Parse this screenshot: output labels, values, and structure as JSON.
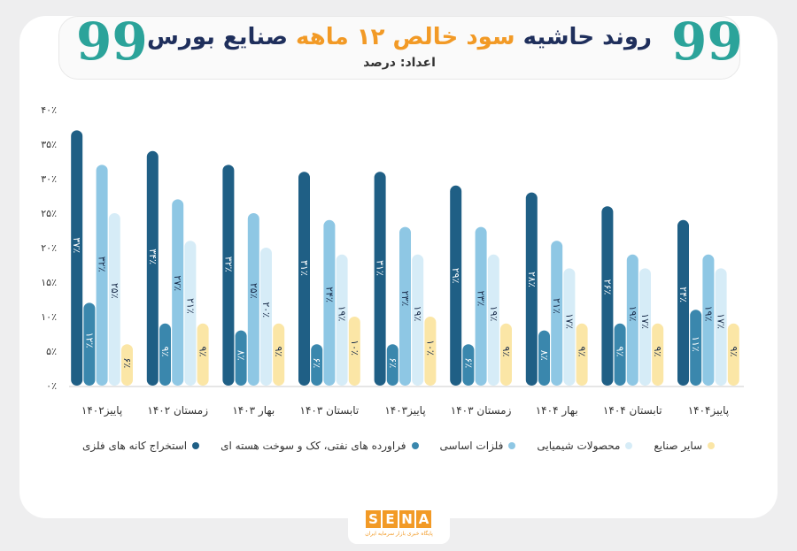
{
  "header": {
    "title_part1": "روند حاشیه",
    "title_accent": "سود خالص ۱۲ ماهه",
    "title_part2": "صنایع بورس",
    "subtitle": "اعداد: درصد",
    "quote_glyph": "99"
  },
  "logo": {
    "letters": [
      "S",
      "E",
      "N",
      "A"
    ],
    "tagline": "پایگاه خبری بازار سرمایه ایران",
    "color": "#f29a26"
  },
  "chart_data": {
    "type": "bar",
    "categories": [
      "پاییز۱۴۰۲",
      "زمستان ۱۴۰۲",
      "بهار ۱۴۰۳",
      "تابستان ۱۴۰۳",
      "پاییز۱۴۰۳",
      "زمستان ۱۴۰۳",
      "بهار ۱۴۰۴",
      "تابستان ۱۴۰۴",
      "پاییز۱۴۰۴"
    ],
    "y_ticks": [
      "۰٪",
      "۵٪",
      "۱۰٪",
      "۱۵٪",
      "۲۰٪",
      "۲۵٪",
      "۳۰٪",
      "۳۵٪",
      "۴۰٪"
    ],
    "ylim": [
      0,
      40
    ],
    "grid": false,
    "legend_position": "bottom",
    "series": [
      {
        "name": "استخراج کانه های فلزی",
        "color": "#1f5f85",
        "values": [
          37,
          34,
          32,
          31,
          31,
          29,
          28,
          26,
          24
        ],
        "labels": [
          "۳۷٪",
          "۳۴٪",
          "۳۲٪",
          "۳۱٪",
          "۳۱٪",
          "۲۹٪",
          "۲۸٪",
          "۲۶٪",
          "۲۴٪"
        ]
      },
      {
        "name": "فراورده های نفتی، کک و سوخت هسته ای",
        "color": "#3a87ad",
        "values": [
          12,
          9,
          8,
          6,
          6,
          6,
          8,
          9,
          11
        ],
        "labels": [
          "۱۲٪",
          "۹٪",
          "۸٪",
          "۶٪",
          "۶٪",
          "۶٪",
          "۸٪",
          "۹٪",
          "۱۱٪"
        ]
      },
      {
        "name": "فلزات اساسی",
        "color": "#8ec7e4",
        "values": [
          32,
          27,
          25,
          24,
          23,
          23,
          21,
          19,
          19
        ],
        "labels": [
          "۳۲٪",
          "۲۷٪",
          "۲۵٪",
          "۲۴٪",
          "۲۳٪",
          "۲۳٪",
          "۲۱٪",
          "۱۹٪",
          "۱۹٪"
        ]
      },
      {
        "name": "محصولات شیمیایی",
        "color": "#d6ecf7",
        "values": [
          25,
          21,
          20,
          19,
          19,
          19,
          17,
          17,
          17
        ],
        "labels": [
          "۲۵٪",
          "۲۱٪",
          "۲۰٪",
          "۱۹٪",
          "۱۹٪",
          "۱۹٪",
          "۱۷٪",
          "۱۷٪",
          "۱۷٪"
        ]
      },
      {
        "name": "سایر صنایع",
        "color": "#fbe6a6",
        "values": [
          6,
          9,
          9,
          10,
          10,
          9,
          9,
          9,
          9
        ],
        "labels": [
          "۶٪",
          "۹٪",
          "۹٪",
          "۱۰٪",
          "۱۰٪",
          "۹٪",
          "۹٪",
          "۹٪",
          "۹٪"
        ]
      }
    ]
  }
}
